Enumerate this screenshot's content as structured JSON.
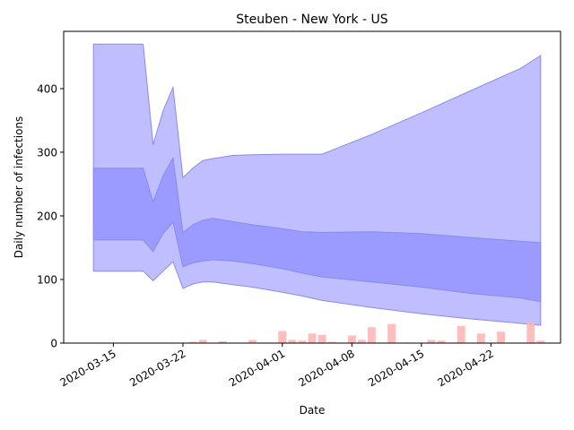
{
  "chart_data": {
    "type": "area",
    "title": "Steuben - New York - US",
    "xlabel": "Date",
    "ylabel": "Daily number of infections",
    "xlim": [
      "2020-03-10",
      "2020-04-29"
    ],
    "ylim": [
      0,
      490
    ],
    "xticks": [
      "2020-03-15",
      "2020-03-22",
      "2020-04-01",
      "2020-04-08",
      "2020-04-15",
      "2020-04-22"
    ],
    "yticks": [
      0,
      100,
      200,
      300,
      400
    ],
    "grid": false,
    "legend": "none",
    "colors": {
      "outer_band": "#bfbfff",
      "inner_band": "#9a9aff",
      "band_edge": "#8a8aee",
      "bars": "#ffb3b3"
    },
    "series": [
      {
        "kind": "outer_band",
        "x": [
          "2020-03-13",
          "2020-03-18",
          "2020-03-19",
          "2020-03-20",
          "2020-03-21",
          "2020-03-22",
          "2020-03-23",
          "2020-03-24",
          "2020-03-25",
          "2020-03-27",
          "2020-03-29",
          "2020-04-01",
          "2020-04-03",
          "2020-04-05",
          "2020-04-10",
          "2020-04-15",
          "2020-04-20",
          "2020-04-25",
          "2020-04-27"
        ],
        "upper": [
          470,
          470,
          312,
          365,
          402,
          260,
          275,
          287,
          290,
          295,
          296,
          297,
          297,
          297,
          328,
          362,
          397,
          432,
          452
        ],
        "lower": [
          113,
          113,
          98,
          113,
          128,
          86,
          93,
          96,
          96,
          92,
          88,
          80,
          74,
          67,
          56,
          46,
          38,
          31,
          28
        ]
      },
      {
        "kind": "inner_band",
        "x": [
          "2020-03-13",
          "2020-03-18",
          "2020-03-19",
          "2020-03-20",
          "2020-03-21",
          "2020-03-22",
          "2020-03-23",
          "2020-03-24",
          "2020-03-25",
          "2020-03-27",
          "2020-03-29",
          "2020-04-01",
          "2020-04-03",
          "2020-04-05",
          "2020-04-10",
          "2020-04-15",
          "2020-04-20",
          "2020-04-25",
          "2020-04-27"
        ],
        "upper": [
          275,
          275,
          222,
          263,
          291,
          174,
          186,
          193,
          196,
          191,
          186,
          180,
          175,
          174,
          175,
          172,
          166,
          160,
          158
        ],
        "lower": [
          162,
          162,
          144,
          172,
          190,
          120,
          126,
          129,
          131,
          129,
          125,
          117,
          110,
          104,
          96,
          88,
          78,
          71,
          65
        ]
      },
      {
        "kind": "bars",
        "x": [
          "2020-03-13",
          "2020-03-14",
          "2020-03-15",
          "2020-03-16",
          "2020-03-17",
          "2020-03-18",
          "2020-03-19",
          "2020-03-20",
          "2020-03-21",
          "2020-03-22",
          "2020-03-23",
          "2020-03-24",
          "2020-03-25",
          "2020-03-26",
          "2020-03-27",
          "2020-03-28",
          "2020-03-29",
          "2020-03-30",
          "2020-03-31",
          "2020-04-01",
          "2020-04-02",
          "2020-04-03",
          "2020-04-04",
          "2020-04-05",
          "2020-04-06",
          "2020-04-07",
          "2020-04-08",
          "2020-04-09",
          "2020-04-10",
          "2020-04-11",
          "2020-04-12",
          "2020-04-13",
          "2020-04-14",
          "2020-04-15",
          "2020-04-16",
          "2020-04-17",
          "2020-04-18",
          "2020-04-19",
          "2020-04-20",
          "2020-04-21",
          "2020-04-22",
          "2020-04-23",
          "2020-04-24",
          "2020-04-25",
          "2020-04-26",
          "2020-04-27"
        ],
        "values": [
          0,
          0,
          0,
          0,
          0,
          0,
          0,
          1,
          0,
          0,
          2,
          5,
          0,
          3,
          0,
          0,
          5,
          1,
          0,
          19,
          5,
          4,
          15,
          13,
          2,
          0,
          12,
          5,
          25,
          0,
          30,
          0,
          0,
          0,
          5,
          4,
          0,
          27,
          0,
          15,
          0,
          18,
          0,
          0,
          33,
          4
        ]
      }
    ]
  }
}
